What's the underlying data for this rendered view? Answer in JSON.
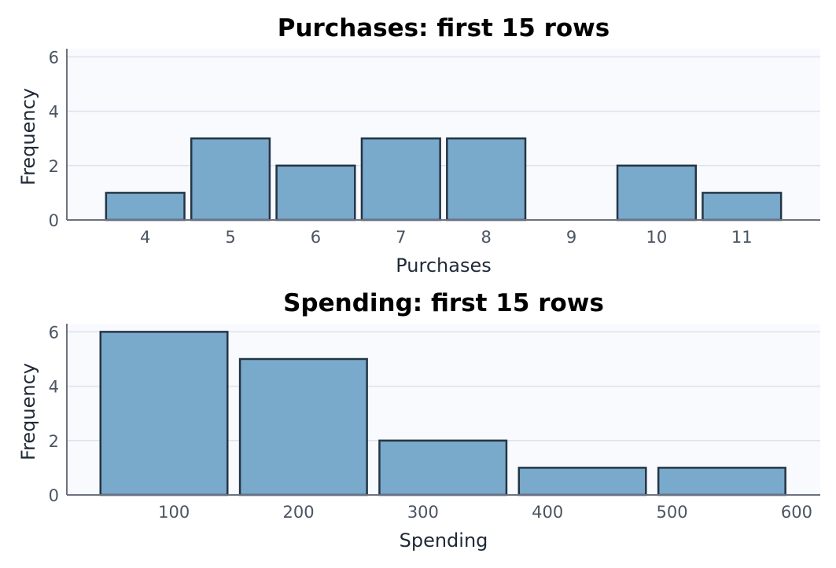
{
  "colors": {
    "bar_fill": "#79a9cb",
    "bar_stroke": "#243545",
    "plot_bg": "#f9fafd",
    "grid": "#dde2ef",
    "axis": "#6b7280"
  },
  "chart_data": [
    {
      "type": "bar",
      "title": "Purchases: first 15 rows",
      "xlabel": "Purchases",
      "ylabel": "Frequency",
      "categories": [
        "4",
        "5",
        "6",
        "7",
        "8",
        "9",
        "10",
        "11"
      ],
      "values": [
        1,
        3,
        2,
        3,
        3,
        0,
        2,
        1
      ],
      "xlim": [
        3.08,
        11.92
      ],
      "ylim": [
        0,
        6.3
      ],
      "yticks": [
        0,
        2,
        4,
        6
      ],
      "grid": "horizontal"
    },
    {
      "type": "bar",
      "title": "Spending: first 15 rows",
      "xlabel": "Spending",
      "ylabel": "Frequency",
      "bins": [
        {
          "start": 41,
          "end": 143,
          "value": 6
        },
        {
          "start": 153,
          "end": 255,
          "value": 5
        },
        {
          "start": 265,
          "end": 367,
          "value": 2
        },
        {
          "start": 377,
          "end": 479,
          "value": 1
        },
        {
          "start": 489,
          "end": 591,
          "value": 1
        }
      ],
      "xticks": [
        "100",
        "200",
        "300",
        "400",
        "500",
        "600"
      ],
      "xlim": [
        14,
        619
      ],
      "ylim": [
        0,
        6.3
      ],
      "yticks": [
        0,
        2,
        4,
        6
      ],
      "grid": "horizontal"
    }
  ]
}
